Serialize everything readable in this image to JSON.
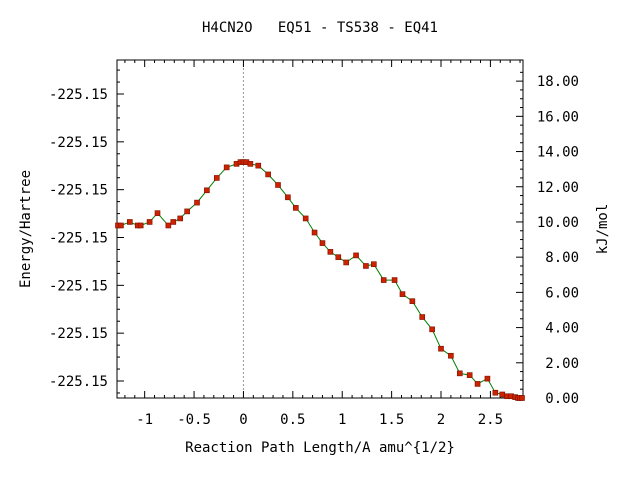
{
  "chart_data": {
    "type": "line",
    "title": "H4CN2O   EQ51 - TS538 - EQ41",
    "xlabel": "Reaction Path Length/A amu^{1/2}",
    "ylabel_left": "Energy/Hartree",
    "ylabel_right": "kJ/mol",
    "xlim": [
      -1.28,
      2.83
    ],
    "ylim_right": [
      0.0,
      19.2
    ],
    "x_ticks": [
      -1,
      -0.5,
      0,
      0.5,
      1,
      1.5,
      2,
      2.5
    ],
    "x_tick_labels": [
      "-1",
      "-0.5",
      "0",
      "0.5",
      "1",
      "1.5",
      "2",
      "2.5"
    ],
    "left_tick_labels": [
      "-225.15",
      "-225.15",
      "-225.15",
      "-225.15",
      "-225.15",
      "-225.15",
      "-225.15"
    ],
    "right_ticks": [
      0,
      2,
      4,
      6,
      8,
      10,
      12,
      14,
      16,
      18
    ],
    "right_tick_labels": [
      "0.00",
      "2.00",
      "4.00",
      "6.00",
      "8.00",
      "10.00",
      "12.00",
      "14.00",
      "16.00",
      "18.00"
    ],
    "ts_marker_x": 0,
    "grid": false,
    "line_color": "#008000",
    "marker_color": "#cc2200",
    "ts_line_color": "#999999",
    "series": [
      {
        "x": [
          -1.27,
          -1.24,
          -1.15,
          -1.07,
          -1.04,
          -0.95,
          -0.87,
          -0.76,
          -0.71,
          -0.64,
          -0.57,
          -0.47,
          -0.37,
          -0.27,
          -0.17,
          -0.07,
          -0.03,
          0.0,
          0.03,
          0.07,
          0.15,
          0.25,
          0.35,
          0.45,
          0.53,
          0.63,
          0.72,
          0.8,
          0.88,
          0.96,
          1.04,
          1.14,
          1.24,
          1.32,
          1.42,
          1.53,
          1.61,
          1.71,
          1.81,
          1.91,
          2.0,
          2.1,
          2.19,
          2.29,
          2.37,
          2.47,
          2.55,
          2.62,
          2.67,
          2.71,
          2.75,
          2.78,
          2.8,
          2.82
        ],
        "y": [
          9.8,
          9.8,
          10.0,
          9.8,
          9.8,
          10.0,
          10.5,
          9.8,
          10.0,
          10.2,
          10.6,
          11.1,
          11.8,
          12.5,
          13.1,
          13.3,
          13.4,
          13.4,
          13.4,
          13.3,
          13.2,
          12.7,
          12.1,
          11.4,
          10.8,
          10.2,
          9.4,
          8.8,
          8.3,
          8.0,
          7.7,
          8.1,
          7.5,
          7.6,
          6.7,
          6.7,
          5.9,
          5.5,
          4.6,
          3.9,
          2.8,
          2.4,
          1.4,
          1.3,
          0.8,
          1.1,
          0.3,
          0.2,
          0.1,
          0.1,
          0.05,
          0.0,
          0.0,
          0.0
        ]
      }
    ]
  }
}
